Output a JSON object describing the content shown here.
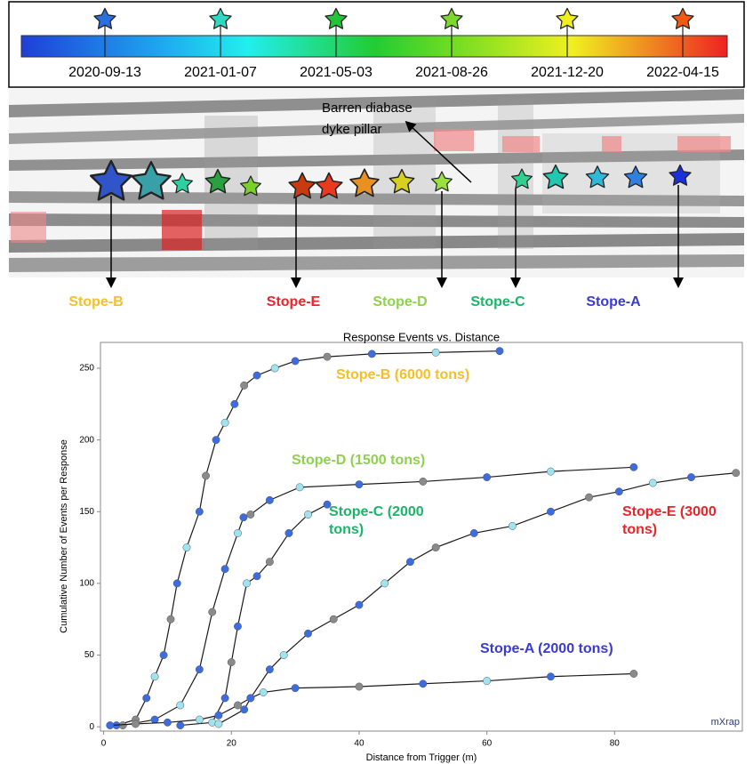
{
  "colorbar": {
    "ticks": [
      {
        "label": "2020-09-13",
        "color": "#2a6fe0"
      },
      {
        "label": "2021-01-07",
        "color": "#2fd8c0"
      },
      {
        "label": "2021-05-03",
        "color": "#22c43a"
      },
      {
        "label": "2021-08-26",
        "color": "#7ed82a"
      },
      {
        "label": "2021-12-20",
        "color": "#f2ee1e"
      },
      {
        "label": "2022-04-15",
        "color": "#f25a12"
      }
    ]
  },
  "scene": {
    "annotation": [
      "Barren diabase",
      "dyke pillar"
    ],
    "stopes": [
      {
        "label": "Stope-B",
        "color": "#f5bf2c"
      },
      {
        "label": "Stope-E",
        "color": "#e8262a"
      },
      {
        "label": "Stope-D",
        "color": "#8fd14f"
      },
      {
        "label": "Stope-C",
        "color": "#1fb36a"
      },
      {
        "label": "Stope-A",
        "color": "#3a3ccc"
      }
    ]
  },
  "chart_data": {
    "type": "line",
    "title": "Response Events vs. Distance",
    "x_label": "Distance from Trigger (m)",
    "y_label": "Cumulative Number of Events per Response",
    "watermark": "mXrap",
    "xlim": [
      -0.5,
      100
    ],
    "ylim": [
      -3,
      268
    ],
    "xticks": [
      0,
      20,
      40,
      60,
      80
    ],
    "yticks": [
      0,
      50,
      100,
      150,
      200,
      250
    ],
    "grid": false,
    "line_color": "#1a1a1a",
    "marker_colors": [
      "#3d6be0",
      "#8a8a8a",
      "#3d6be0",
      "#9fe3f0"
    ],
    "series": [
      {
        "name": "Stope-B (6000 tons)",
        "color": "#f5bf2c",
        "x": [
          2,
          5,
          6.7,
          8,
          9.4,
          10.5,
          11.5,
          13,
          15,
          16,
          17.6,
          19,
          20.5,
          22,
          24,
          26.8,
          30,
          35,
          42,
          52,
          62
        ],
        "values": [
          1,
          5,
          20,
          35,
          50,
          75,
          100,
          125,
          150,
          175,
          200,
          212,
          225,
          238,
          245,
          250,
          255,
          258,
          260,
          261,
          262
        ]
      },
      {
        "name": "Stope-D (1500 tons)",
        "color": "#8fd14f",
        "x": [
          3,
          8,
          12,
          15,
          17,
          19,
          21,
          21.9,
          23,
          26,
          30.7,
          40,
          50,
          60,
          70,
          83
        ],
        "values": [
          1,
          5,
          15,
          40,
          80,
          110,
          135,
          146,
          148,
          158,
          167,
          169,
          171,
          174,
          178,
          181
        ]
      },
      {
        "name": "Stope-C (2000 tons)",
        "color": "#1fb36a",
        "x": [
          12,
          17,
          19,
          20,
          21,
          22.4,
          24,
          26,
          29,
          32,
          35
        ],
        "values": [
          1,
          3,
          20,
          45,
          70,
          100,
          105,
          115,
          135,
          148,
          155
        ]
      },
      {
        "name": "Stope-E (3000 tons)",
        "color": "#e8262a",
        "x": [
          18,
          22,
          23,
          26,
          28.2,
          32,
          36,
          40,
          44,
          48,
          52,
          58,
          64,
          70,
          76,
          80.7,
          86,
          92,
          99
        ],
        "values": [
          2,
          12,
          20,
          40,
          50,
          65,
          75,
          85,
          100,
          115,
          125,
          135,
          140,
          150,
          160,
          164,
          170,
          174,
          177
        ]
      },
      {
        "name": "Stope-A (2000 tons)",
        "color": "#3a3ccc",
        "x": [
          1,
          5,
          10,
          15,
          18,
          21,
          23,
          25,
          30,
          40,
          50,
          60,
          70,
          83
        ],
        "values": [
          1,
          2,
          3,
          5,
          8,
          15,
          20,
          24,
          27,
          28,
          30,
          32,
          35,
          37
        ]
      }
    ]
  }
}
